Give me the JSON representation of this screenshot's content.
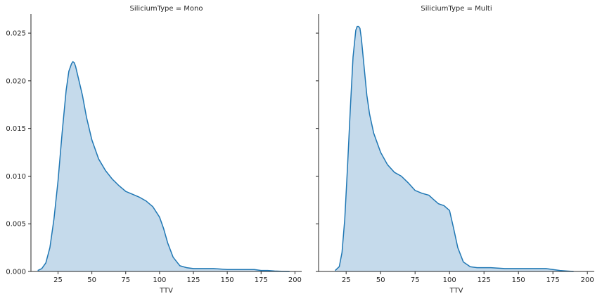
{
  "chart_data": [
    {
      "type": "area",
      "title": "SiliciumType = Mono",
      "xlabel": "TTV",
      "ylabel": "",
      "xlim": [
        5,
        205
      ],
      "ylim": [
        0,
        0.027
      ],
      "xticks": [
        25,
        50,
        75,
        100,
        125,
        150,
        175,
        200
      ],
      "yticks": [
        "0.000",
        "0.005",
        "0.010",
        "0.015",
        "0.020",
        "0.025"
      ],
      "color": "#1f77b4",
      "fill_color": "#c5daeb",
      "series": [
        {
          "x": [
            10,
            13,
            16,
            19,
            22,
            25,
            28,
            31,
            33,
            35,
            36,
            37,
            38,
            40,
            43,
            46,
            50,
            55,
            60,
            65,
            70,
            75,
            80,
            85,
            90,
            95,
            100,
            103,
            106,
            110,
            115,
            120,
            125,
            130,
            140,
            150,
            160,
            170,
            175,
            180,
            185,
            190,
            196
          ],
          "y": [
            0.0001,
            0.0003,
            0.0009,
            0.0025,
            0.0055,
            0.0095,
            0.0145,
            0.019,
            0.021,
            0.0218,
            0.022,
            0.0219,
            0.0215,
            0.0203,
            0.0185,
            0.0162,
            0.0138,
            0.0118,
            0.0106,
            0.0097,
            0.009,
            0.0084,
            0.0081,
            0.0078,
            0.0074,
            0.0068,
            0.0057,
            0.0045,
            0.003,
            0.0015,
            0.0006,
            0.0004,
            0.0003,
            0.0003,
            0.0003,
            0.0002,
            0.0002,
            0.0002,
            0.0001,
            0.0001,
            5e-05,
            2e-05,
            0.0
          ]
        }
      ]
    },
    {
      "type": "area",
      "title": "SiliciumType = Multi",
      "xlabel": "TTV",
      "ylabel": "",
      "xlim": [
        5,
        205
      ],
      "ylim": [
        0,
        0.027
      ],
      "xticks": [
        25,
        50,
        75,
        100,
        125,
        150,
        175,
        200
      ],
      "yticks": [],
      "color": "#1f77b4",
      "fill_color": "#c5daeb",
      "series": [
        {
          "x": [
            17,
            20,
            22,
            24,
            26,
            28,
            30,
            32,
            33,
            34,
            35,
            36,
            38,
            40,
            42,
            45,
            50,
            55,
            60,
            65,
            70,
            75,
            80,
            85,
            88,
            92,
            96,
            100,
            103,
            106,
            110,
            115,
            120,
            130,
            140,
            150,
            160,
            170,
            175,
            180,
            185,
            190
          ],
          "y": [
            0.0001,
            0.0005,
            0.002,
            0.0055,
            0.011,
            0.017,
            0.0225,
            0.0253,
            0.0257,
            0.0257,
            0.0255,
            0.0245,
            0.0215,
            0.0185,
            0.0165,
            0.0145,
            0.0125,
            0.0112,
            0.0104,
            0.01,
            0.0093,
            0.0085,
            0.0082,
            0.008,
            0.0076,
            0.0071,
            0.0069,
            0.0064,
            0.0045,
            0.0025,
            0.001,
            0.0005,
            0.0004,
            0.0004,
            0.0003,
            0.0003,
            0.0003,
            0.0003,
            0.0002,
            0.0001,
            5e-05,
            0.0
          ]
        }
      ]
    }
  ]
}
